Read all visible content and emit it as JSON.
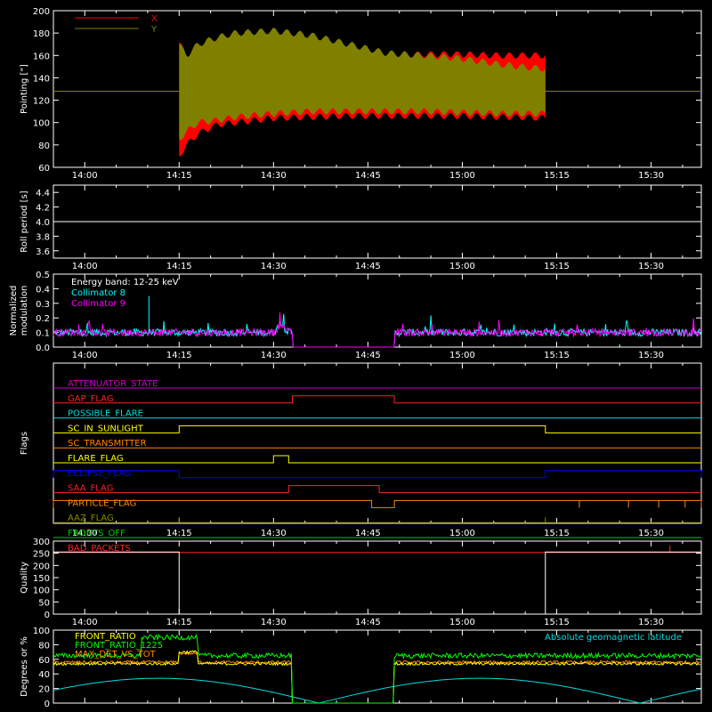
{
  "theme": {
    "background": "#000000",
    "axis_color": "#ffffff"
  },
  "chart_data": [
    {
      "id": "pointing",
      "type": "area",
      "ylabel": "Pointing [\"]",
      "ylim": [
        60,
        200
      ],
      "yticks": [
        60,
        80,
        100,
        120,
        140,
        160,
        180,
        200
      ],
      "xlim": [
        13.917,
        15.633
      ],
      "xtick_labels": [
        "14:00",
        "14:15",
        "14:30",
        "14:45",
        "15:00",
        "15:15",
        "15:30"
      ],
      "legend": "top-left",
      "reference_line": 128,
      "series": [
        {
          "name": "X",
          "color": "#ff0000",
          "t": [
            14.25,
            14.27,
            14.3,
            14.35,
            14.4,
            14.5,
            14.6,
            14.7,
            14.8,
            14.9,
            15.0,
            15.1,
            15.15,
            15.22
          ],
          "upper": [
            172,
            158,
            162,
            166,
            167,
            162,
            160,
            160,
            160,
            161,
            161,
            160,
            160,
            160
          ],
          "lower": [
            70,
            80,
            90,
            98,
            100,
            104,
            105,
            106,
            106,
            106,
            106,
            105,
            105,
            104
          ]
        },
        {
          "name": "Y",
          "color": "#808000",
          "t": [
            14.25,
            14.27,
            14.3,
            14.35,
            14.4,
            14.5,
            14.6,
            14.7,
            14.8,
            14.9,
            15.0,
            15.1,
            15.15,
            15.22
          ],
          "upper": [
            170,
            160,
            170,
            176,
            180,
            182,
            178,
            170,
            162,
            160,
            157,
            152,
            150,
            148
          ],
          "lower": [
            85,
            92,
            100,
            102,
            105,
            108,
            110,
            110,
            110,
            110,
            109,
            108,
            108,
            108
          ]
        }
      ]
    },
    {
      "id": "roll",
      "type": "line",
      "ylabel": "Roll period [s]",
      "ylim": [
        3.5,
        4.5
      ],
      "yticks": [
        3.6,
        3.8,
        4.0,
        4.2,
        4.4
      ],
      "ytick_labels": [
        "3.6",
        "3.8",
        "4.0",
        "4.2",
        "4.4"
      ],
      "xlim": [
        13.917,
        15.633
      ],
      "xtick_labels": [
        "14:00",
        "14:15",
        "14:30",
        "14:45",
        "15:00",
        "15:15",
        "15:30"
      ],
      "value": 4.0
    },
    {
      "id": "modulation",
      "type": "line",
      "ylabel": "Normalized modulation",
      "ylim": [
        0,
        0.5
      ],
      "yticks": [
        0,
        0.1,
        0.2,
        0.3,
        0.4,
        0.5
      ],
      "ytick_labels": [
        "0.0",
        "0.1",
        "0.2",
        "0.3",
        "0.4",
        "0.5"
      ],
      "xlim": [
        13.917,
        15.633
      ],
      "xtick_labels": [
        "14:00",
        "14:15",
        "14:30",
        "14:45",
        "15:00",
        "15:15",
        "15:30"
      ],
      "annotation": "Energy band: 12-25 keV",
      "gaps": [
        [
          14.55,
          14.82
        ]
      ],
      "series": [
        {
          "name": "Collimator 8",
          "color": "#00ffff",
          "level": 0.1
        },
        {
          "name": "Collimator 9",
          "color": "#ff00ff",
          "level": 0.1
        }
      ]
    },
    {
      "id": "flags",
      "type": "line",
      "ylabel": "Flags",
      "xlim": [
        13.917,
        15.633
      ],
      "xtick_labels": [
        "14:00",
        "14:15",
        "14:30",
        "14:45",
        "15:00",
        "15:15",
        "15:30"
      ],
      "flags": [
        {
          "name": "ATTENUATOR_STATE",
          "color": "#cc00cc",
          "segments": []
        },
        {
          "name": "GAP_FLAG",
          "color": "#ff2222",
          "segments": [
            [
              14.55,
              14.82
            ]
          ]
        },
        {
          "name": "POSSIBLE_FLARE",
          "color": "#00dddd",
          "segments": []
        },
        {
          "name": "SC_IN_SUNLIGHT",
          "color": "#ffff00",
          "segments": [
            [
              14.25,
              15.22
            ]
          ]
        },
        {
          "name": "SC_TRANSMITTER",
          "color": "#ff8800",
          "segments": []
        },
        {
          "name": "FLARE_FLAG",
          "color": "#ffff00",
          "segments": [
            [
              14.5,
              14.54
            ]
          ]
        },
        {
          "name": "ECLIPSE_FLAG",
          "color": "#0000ff",
          "segments": [
            [
              13.917,
              14.25
            ],
            [
              15.22,
              15.633
            ]
          ]
        },
        {
          "name": "SAA_FLAG",
          "color": "#ff2222",
          "segments": [
            [
              14.54,
              14.78
            ]
          ]
        },
        {
          "name": "PARTICLE_FLAG",
          "color": "#ff8800",
          "segments": [
            [
              13.917,
              14.76
            ],
            [
              14.82,
              15.633
            ]
          ]
        },
        {
          "name": "AAZ_FLAG",
          "color": "#888800",
          "segments": []
        },
        {
          "name": "FRONTS_OFF",
          "color": "#00cc00",
          "segments": []
        },
        {
          "name": "BAD_PACKETS",
          "color": "#ff2222",
          "segments": []
        }
      ]
    },
    {
      "id": "quality",
      "type": "line",
      "ylabel": "Quality",
      "ylim": [
        0,
        300
      ],
      "yticks": [
        0,
        50,
        100,
        150,
        200,
        250,
        300
      ],
      "xlim": [
        13.917,
        15.633
      ],
      "xtick_labels": [
        "14:00",
        "14:15",
        "14:30",
        "14:45",
        "15:00",
        "15:15",
        "15:30"
      ],
      "color": "#ffffff",
      "high_value": 255,
      "low_from": 14.25,
      "high_from": 15.22
    },
    {
      "id": "ratios",
      "type": "line",
      "ylabel": "Degrees or %",
      "ylim": [
        0,
        100
      ],
      "yticks": [
        0,
        20,
        40,
        60,
        80,
        100
      ],
      "xlim": [
        13.917,
        15.633
      ],
      "legend": "top-left",
      "annotation": "Absolute geomagnetic latitude",
      "annotation_color": "#00dddd",
      "series": [
        {
          "name": "FRONT_RATIO",
          "color": "#ffff00"
        },
        {
          "name": "FRONT_RATIO_1225",
          "color": "#00ff00"
        },
        {
          "name": "MAX_DET_VS_TOT",
          "color": "#ff8800"
        }
      ]
    }
  ]
}
